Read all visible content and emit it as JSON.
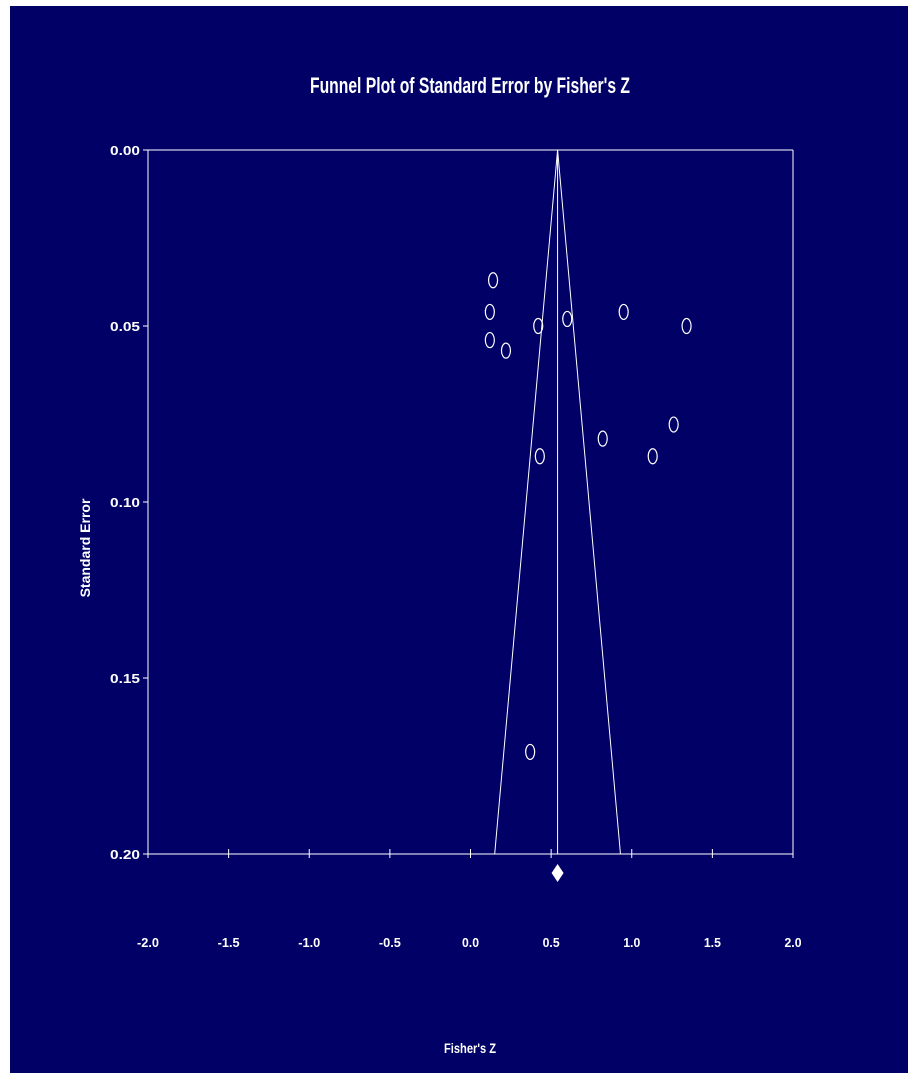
{
  "colors": {
    "background": "#000066",
    "foreground": "#ffffff",
    "page": "#ffffff"
  },
  "chart_data": {
    "type": "scatter",
    "title": "Funnel Plot of Standard Error by Fisher's Z",
    "xlabel": "Fisher's Z",
    "ylabel": "Standard Error",
    "xlim": [
      -2.0,
      2.0
    ],
    "ylim": [
      0.0,
      0.2
    ],
    "y_inverted": true,
    "grid": false,
    "legend": "none",
    "x_ticks": [
      "-2.0",
      "-1.5",
      "-1.0",
      "-0.5",
      "0.0",
      "0.5",
      "1.0",
      "1.5",
      "2.0"
    ],
    "y_ticks": [
      "0.00",
      "0.05",
      "0.10",
      "0.15",
      "0.20"
    ],
    "summary_effect": 0.54,
    "funnel": {
      "apex": [
        0.54,
        0.0
      ],
      "left_base": [
        0.15,
        0.2
      ],
      "right_base": [
        0.93,
        0.2
      ]
    },
    "points": [
      {
        "x": 0.14,
        "y": 0.037
      },
      {
        "x": 0.12,
        "y": 0.046
      },
      {
        "x": 0.12,
        "y": 0.054
      },
      {
        "x": 0.22,
        "y": 0.057
      },
      {
        "x": 0.42,
        "y": 0.05
      },
      {
        "x": 0.6,
        "y": 0.048
      },
      {
        "x": 0.95,
        "y": 0.046
      },
      {
        "x": 1.34,
        "y": 0.05
      },
      {
        "x": 1.26,
        "y": 0.078
      },
      {
        "x": 1.13,
        "y": 0.087
      },
      {
        "x": 0.82,
        "y": 0.082
      },
      {
        "x": 0.43,
        "y": 0.087
      },
      {
        "x": 0.37,
        "y": 0.171
      }
    ]
  }
}
